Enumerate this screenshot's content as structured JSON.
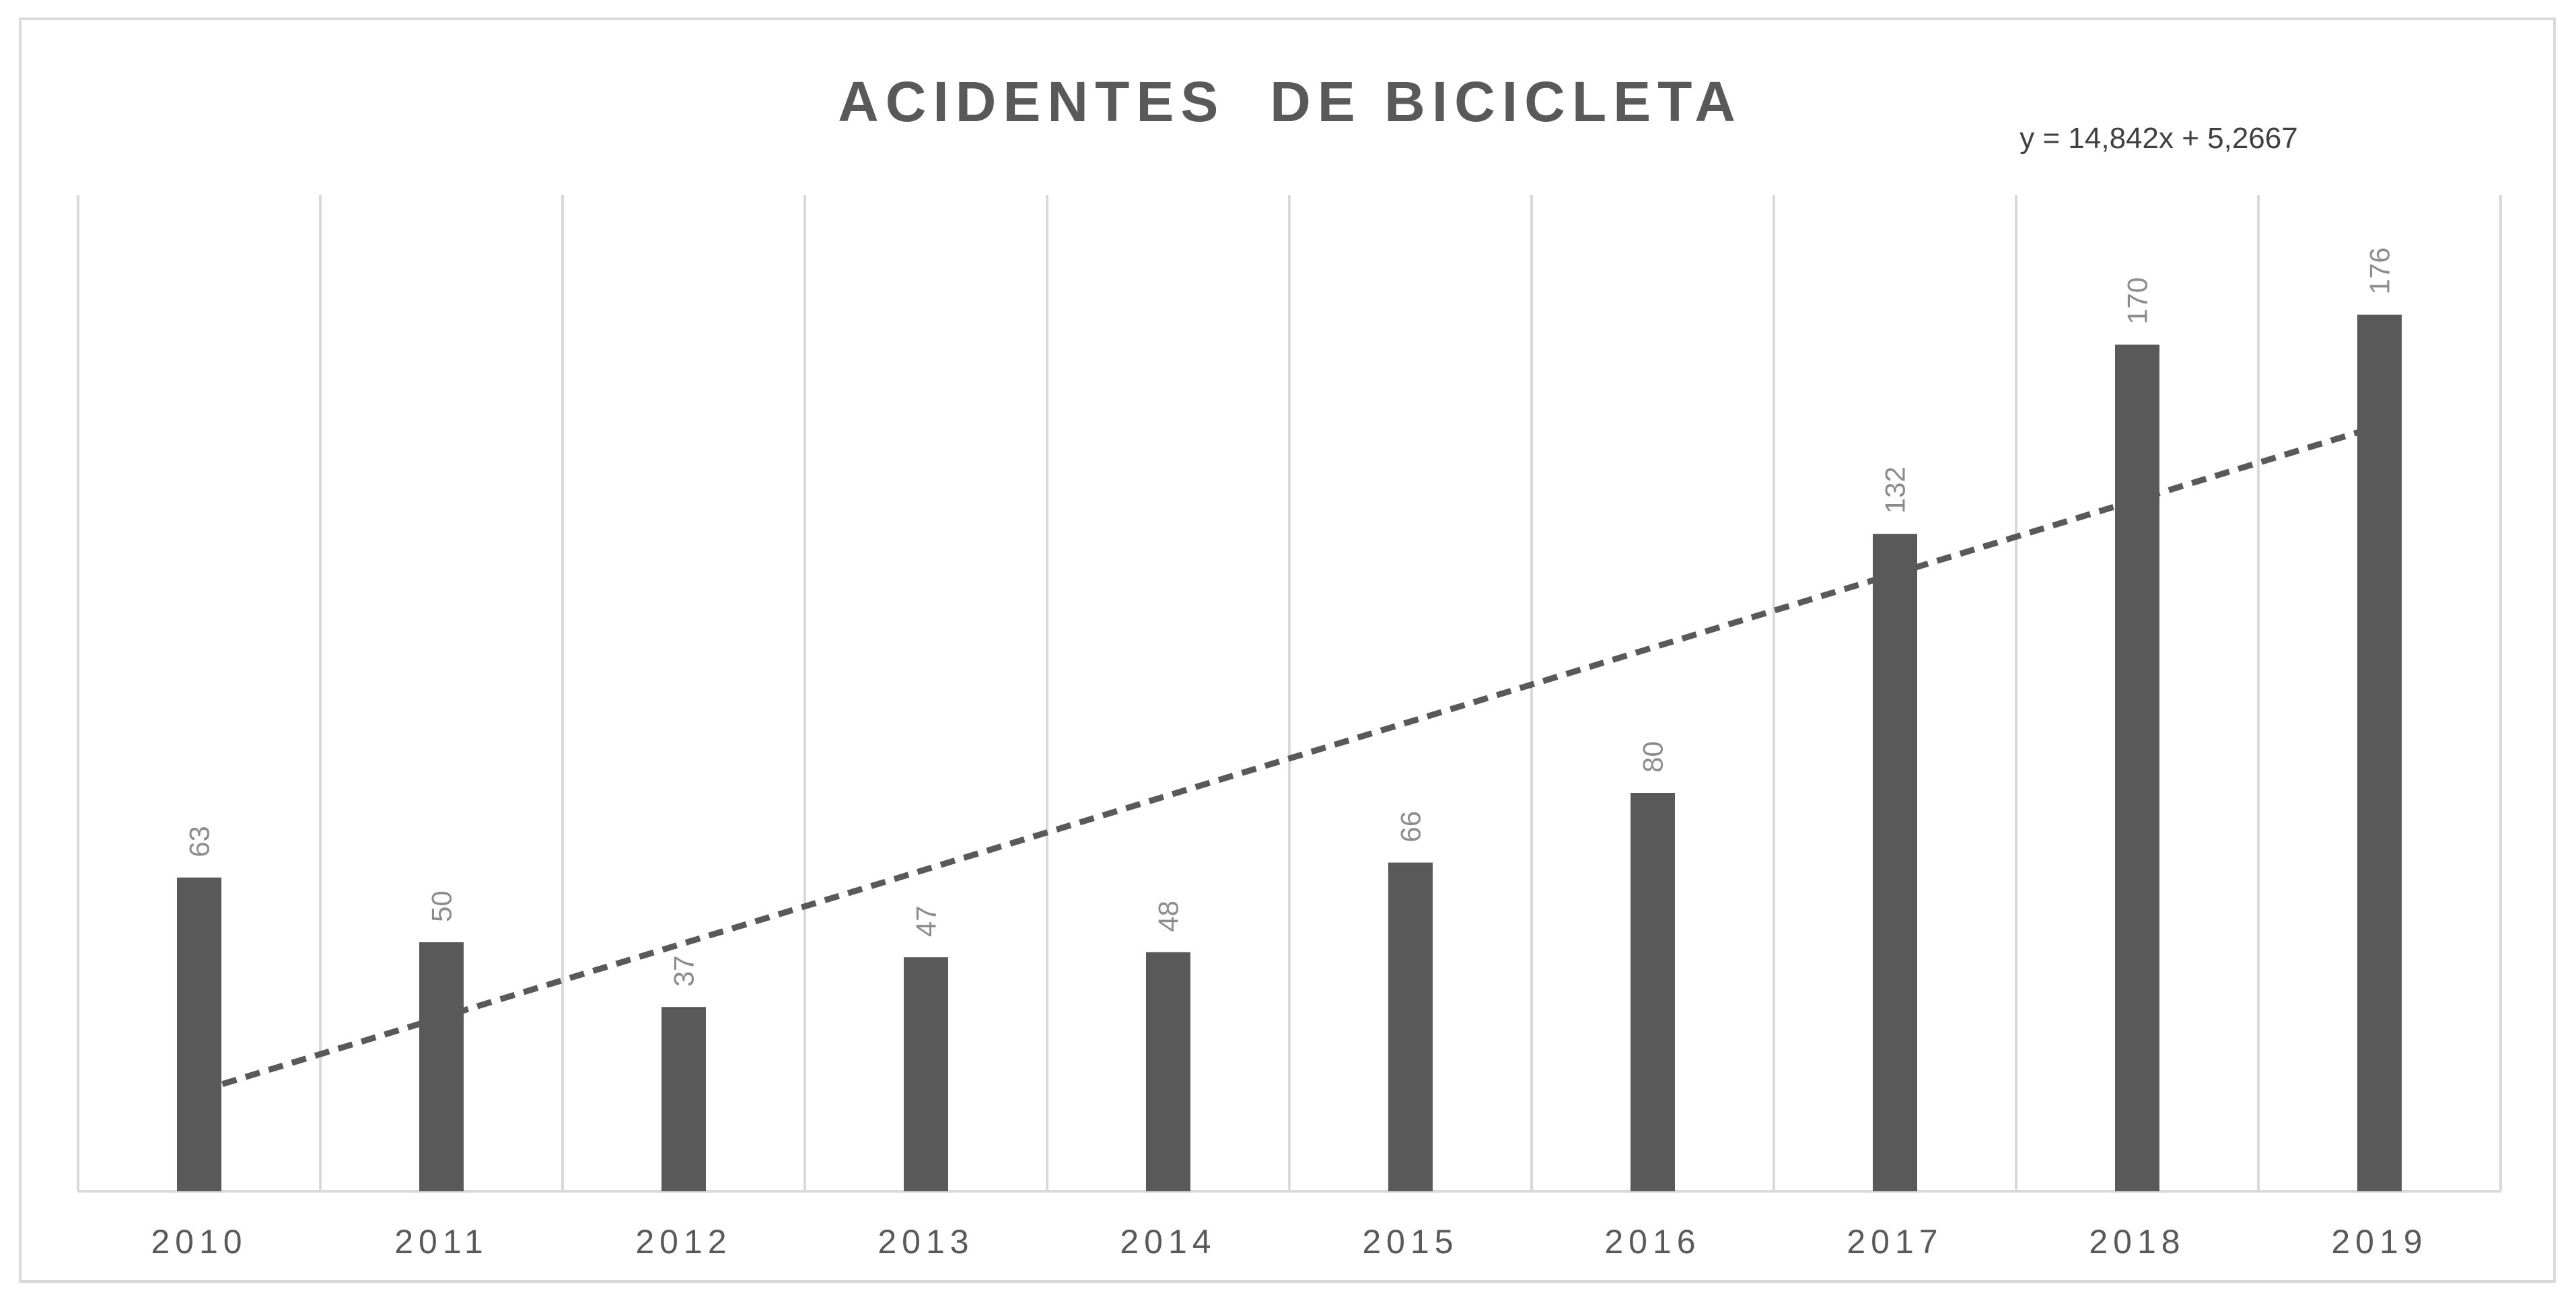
{
  "chart_data": {
    "type": "bar",
    "title": "ACIDENTES  DE BICICLETA",
    "categories": [
      "2010",
      "2011",
      "2012",
      "2013",
      "2014",
      "2015",
      "2016",
      "2017",
      "2018",
      "2019"
    ],
    "series": [
      {
        "values": [
          63,
          50,
          37,
          47,
          48,
          66,
          80,
          132,
          170,
          176
        ]
      }
    ],
    "trendline": {
      "type": "linear",
      "equation": "y = 14,842x + 5,2667",
      "slope": 14.842,
      "intercept": 5.2667,
      "style": "dashed"
    },
    "ylim": [
      0,
      200
    ],
    "grid": {
      "vertical": true,
      "horizontal": false
    },
    "data_labels": true,
    "colors": {
      "bar": "#595959",
      "trend": "#595959",
      "grid": "#d9d9d9",
      "label": "#8c8c8c"
    }
  }
}
